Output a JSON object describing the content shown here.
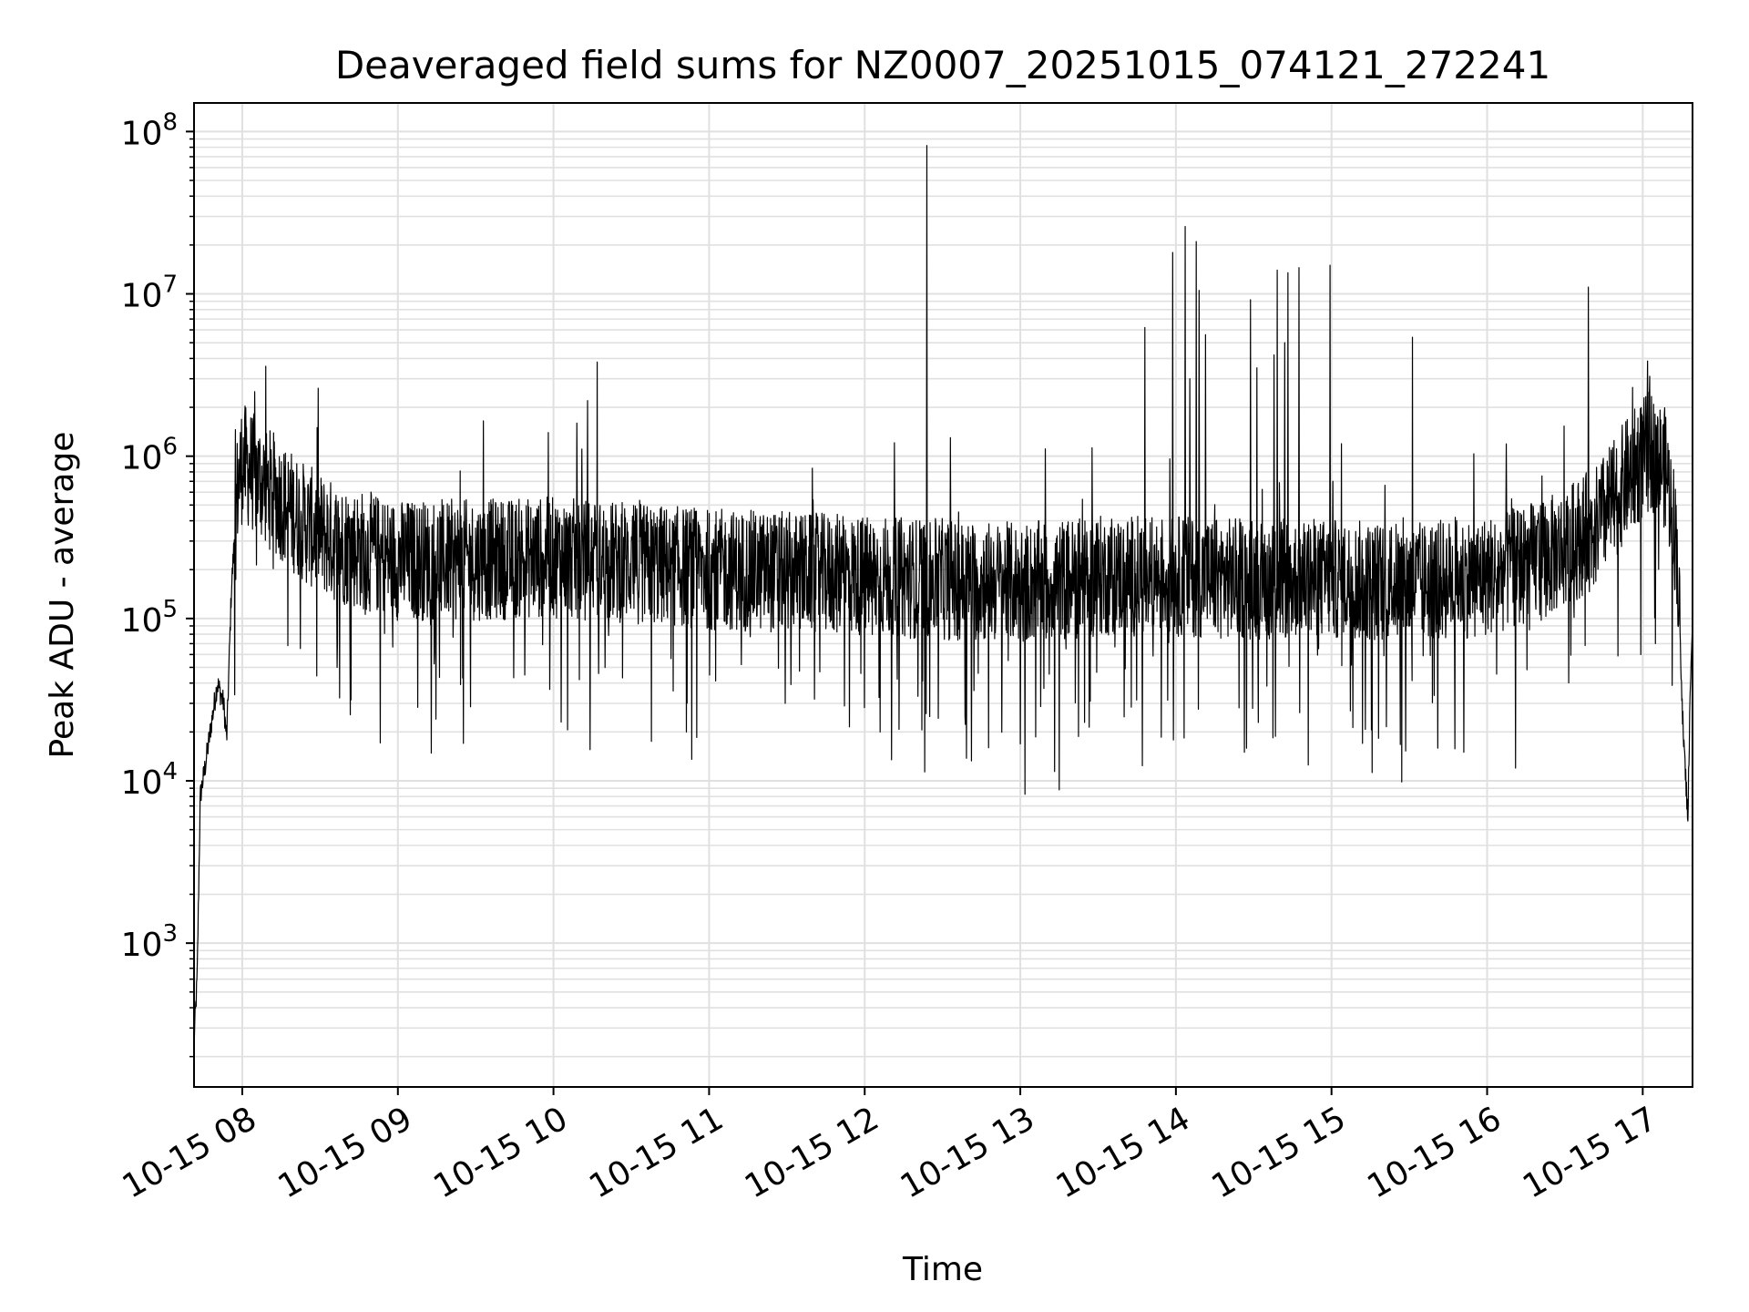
{
  "chart_data": {
    "type": "line",
    "title": "Deaveraged field sums for NZ0007_20251015_074121_272241",
    "xlabel": "Time",
    "ylabel": "Peak ADU - average",
    "yscale": "log",
    "ylim": [
      130,
      150000000
    ],
    "xlim_hours": [
      7.69,
      17.32
    ],
    "x_tick_labels": [
      "10-15 08",
      "10-15 09",
      "10-15 10",
      "10-15 11",
      "10-15 12",
      "10-15 13",
      "10-15 14",
      "10-15 15",
      "10-15 16",
      "10-15 17"
    ],
    "x_tick_hours": [
      8,
      9,
      10,
      11,
      12,
      13,
      14,
      15,
      16,
      17
    ],
    "y_tick_labels": [
      {
        "base": "10",
        "exp": "3",
        "value": 1000
      },
      {
        "base": "10",
        "exp": "4",
        "value": 10000
      },
      {
        "base": "10",
        "exp": "5",
        "value": 100000
      },
      {
        "base": "10",
        "exp": "6",
        "value": 1000000
      },
      {
        "base": "10",
        "exp": "7",
        "value": 10000000
      },
      {
        "base": "10",
        "exp": "8",
        "value": 100000000
      }
    ],
    "grid": true,
    "line_color": "#000000",
    "grid_color": "#e0e0e0",
    "series": [
      {
        "name": "field sums",
        "envelope": [
          [
            7.69,
            250
          ],
          [
            7.71,
            600
          ],
          [
            7.73,
            8000
          ],
          [
            7.76,
            12000
          ],
          [
            7.8,
            22000
          ],
          [
            7.84,
            40000
          ],
          [
            7.88,
            30000
          ],
          [
            7.9,
            18000
          ],
          [
            7.93,
            150000
          ],
          [
            7.97,
            700000
          ],
          [
            8.0,
            1000000
          ],
          [
            8.05,
            900000
          ],
          [
            8.2,
            650000
          ],
          [
            8.4,
            420000
          ],
          [
            8.6,
            320000
          ],
          [
            9.0,
            250000
          ],
          [
            9.5,
            250000
          ],
          [
            10.0,
            260000
          ],
          [
            10.5,
            240000
          ],
          [
            11.0,
            220000
          ],
          [
            11.5,
            210000
          ],
          [
            12.0,
            200000
          ],
          [
            12.5,
            190000
          ],
          [
            13.0,
            180000
          ],
          [
            13.5,
            200000
          ],
          [
            14.0,
            200000
          ],
          [
            14.5,
            190000
          ],
          [
            15.0,
            190000
          ],
          [
            15.5,
            180000
          ],
          [
            16.0,
            200000
          ],
          [
            16.4,
            260000
          ],
          [
            16.7,
            400000
          ],
          [
            16.9,
            800000
          ],
          [
            17.05,
            1200000
          ],
          [
            17.15,
            900000
          ],
          [
            17.22,
            300000
          ],
          [
            17.26,
            20000
          ],
          [
            17.29,
            6000
          ],
          [
            17.31,
            60000
          ],
          [
            17.32,
            80000
          ]
        ],
        "spikes": [
          [
            8.08,
            2500000
          ],
          [
            8.48,
            1500000
          ],
          [
            9.55,
            1650000
          ],
          [
            10.15,
            1600000
          ],
          [
            10.22,
            2200000
          ],
          [
            10.28,
            3800000
          ],
          [
            12.4,
            82000000
          ],
          [
            12.55,
            1300000
          ],
          [
            13.8,
            6200000
          ],
          [
            13.98,
            18000000
          ],
          [
            14.06,
            26000000
          ],
          [
            14.09,
            3000000
          ],
          [
            14.13,
            21000000
          ],
          [
            14.15,
            10500000
          ],
          [
            14.19,
            5600000
          ],
          [
            14.48,
            9200000
          ],
          [
            14.52,
            3500000
          ],
          [
            14.63,
            4200000
          ],
          [
            14.65,
            14000000
          ],
          [
            14.7,
            5000000
          ],
          [
            14.72,
            13500000
          ],
          [
            14.79,
            14500000
          ],
          [
            14.99,
            15000000
          ],
          [
            15.52,
            5400000
          ],
          [
            16.65,
            11000000
          ]
        ],
        "dips": [
          [
            9.42,
            17000
          ],
          [
            10.05,
            23000
          ],
          [
            10.63,
            17500
          ],
          [
            10.92,
            18500
          ],
          [
            12.1,
            20000
          ],
          [
            13.25,
            8800
          ],
          [
            14.44,
            15000
          ],
          [
            15.2,
            17000
          ],
          [
            15.85,
            15000
          ]
        ]
      }
    ]
  }
}
